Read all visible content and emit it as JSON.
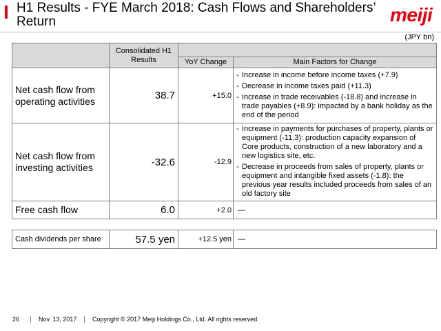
{
  "header": {
    "title": "H1 Results - FYE March 2018: Cash Flows and Shareholders’ Return",
    "logo": "meiji",
    "accent_color": "#e60012"
  },
  "unit": "(JPY bn)",
  "table": {
    "col_headers": {
      "consolidated": "Consolidated H1 Results",
      "yoy": "YoY Change",
      "factors": "Main Factors for Change"
    },
    "rows": [
      {
        "label": "Net cash flow from operating activities",
        "value": "38.7",
        "change": "+15.0",
        "factors": [
          "Increase in income before income taxes (+7.9)",
          "Decrease in income taxes paid (+11.3)",
          "Increase in trade receivables (-18.8) and increase in trade payables (+8.9): impacted by a bank holiday as the end of the period"
        ]
      },
      {
        "label": "Net cash flow from investing activities",
        "value": "-32.6",
        "change": "-12.9",
        "factors": [
          "Increase in payments for purchases of property, plants or equipment (-11.3): production capacity expansion of Core products, construction of a new laboratory and a new logistics site, etc.",
          "Decrease in proceeds from sales of property, plants or equipment and intangible fixed assets (-1.8): the previous year results included proceeds from sales of an old factory site"
        ]
      },
      {
        "label": "Free cash flow",
        "value": "6.0",
        "change": "+2.0",
        "factor_text": "―"
      }
    ]
  },
  "dividends": {
    "label": "Cash dividends per share",
    "value": "57.5 yen",
    "change": "+12.5 yen",
    "factor_text": "―"
  },
  "footer": {
    "page": "26",
    "date": "Nov. 13, 2017",
    "copyright": "Copyright © 2017 Meiji Holdings Co., Ltd. All rights reserved."
  }
}
